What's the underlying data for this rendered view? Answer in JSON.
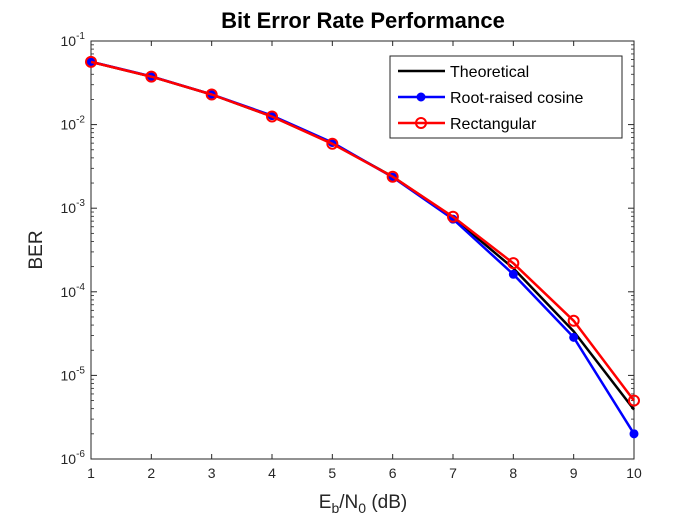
{
  "chart_data": {
    "type": "line",
    "title": "Bit Error Rate Performance",
    "xlabel": {
      "base": "E",
      "sub1": "b",
      "mid": "/N",
      "sub2": "0",
      "tail": " (dB)"
    },
    "ylabel": "BER",
    "xlim": [
      1,
      10
    ],
    "ylim": [
      1e-06,
      0.1
    ],
    "yscale": "log",
    "x_ticks": [
      "1",
      "2",
      "3",
      "4",
      "5",
      "6",
      "7",
      "8",
      "9",
      "10"
    ],
    "y_ticks": [
      {
        "base": "10",
        "exp": "-6"
      },
      {
        "base": "10",
        "exp": "-5"
      },
      {
        "base": "10",
        "exp": "-4"
      },
      {
        "base": "10",
        "exp": "-3"
      },
      {
        "base": "10",
        "exp": "-2"
      },
      {
        "base": "10",
        "exp": "-1"
      }
    ],
    "x": [
      1,
      2,
      3,
      4,
      5,
      6,
      7,
      8,
      9,
      10
    ],
    "series": [
      {
        "name": "Theoretical",
        "color": "#000000",
        "marker": "none",
        "values": [
          0.0563,
          0.0375,
          0.0229,
          0.0125,
          0.00596,
          0.00239,
          0.000773,
          0.000191,
          3.36e-05,
          3.9e-06
        ]
      },
      {
        "name": "Root-raised cosine",
        "color": "#0000ff",
        "marker": "filled-circle",
        "values": [
          0.0565,
          0.0378,
          0.023,
          0.0128,
          0.0061,
          0.00235,
          0.00074,
          0.000162,
          2.85e-05,
          2e-06
        ]
      },
      {
        "name": "Rectangular",
        "color": "#ff0000",
        "marker": "open-circle",
        "values": [
          0.0563,
          0.0375,
          0.0229,
          0.0125,
          0.0059,
          0.00238,
          0.00079,
          0.00022,
          4.5e-05,
          5e-06
        ]
      }
    ],
    "grid": false,
    "legend_position": "top-right"
  }
}
